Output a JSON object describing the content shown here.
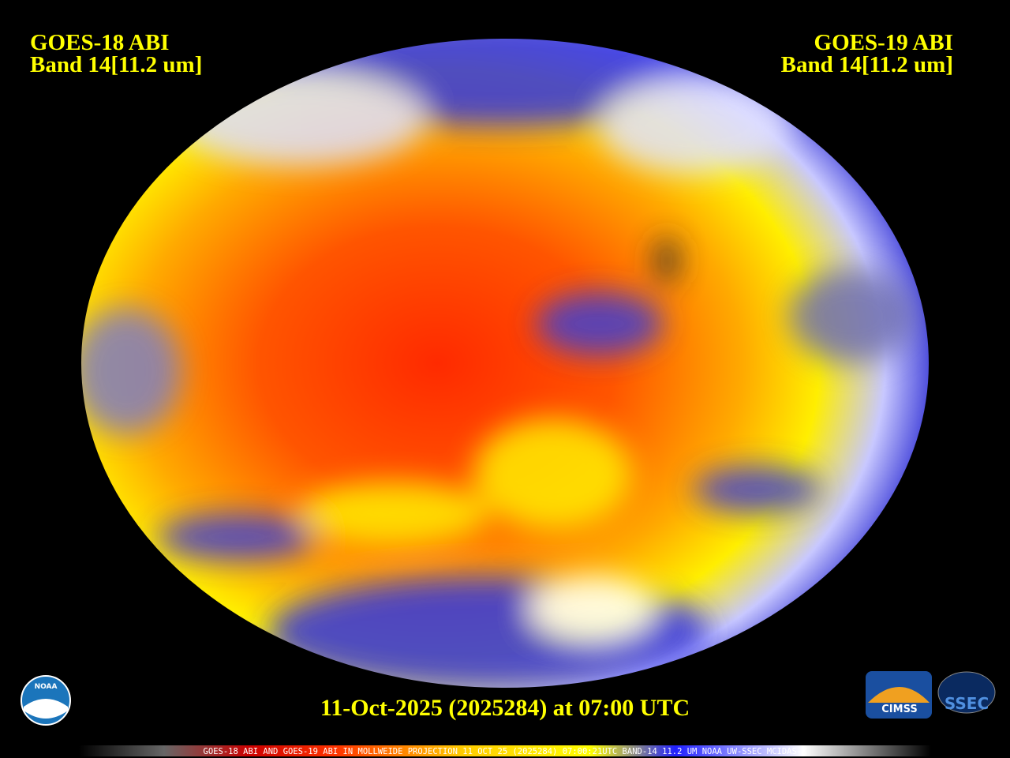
{
  "header": {
    "left_title": "GOES-18 ABI",
    "left_band": "Band 14[11.2 um]",
    "right_title": "GOES-19 ABI",
    "right_band": "Band 14[11.2 um]"
  },
  "timestamp": "11-Oct-2025 (2025284) at 07:00 UTC",
  "footer": "GOES-18 ABI AND GOES-19 ABI IN MOLLWEIDE PROJECTION 11 OCT 25 (2025284) 07:00:21UTC BAND-14 11.2 UM NOAA UW-SSEC MCIDAS-X",
  "logos": {
    "noaa": "NOAA",
    "cimss": "CIMSS",
    "ssec": "SSEC"
  }
}
